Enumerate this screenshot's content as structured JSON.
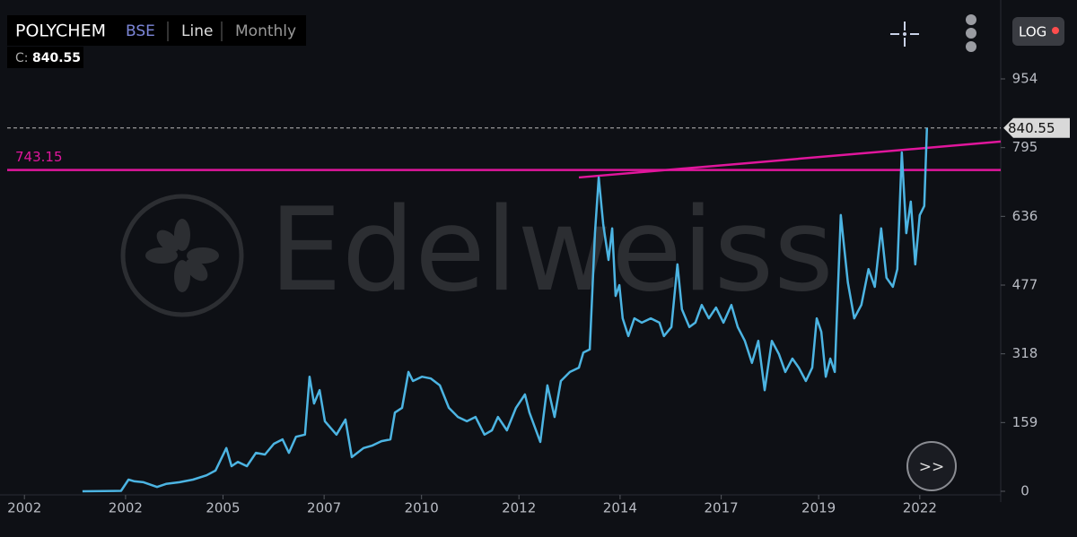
{
  "chart_data": {
    "type": "line",
    "symbol": "POLYCHEM",
    "exchange": "BSE",
    "chart_style": "Line",
    "interval": "Monthly",
    "close_label": "C:",
    "close": 840.55,
    "log_button": "LOG",
    "watermark": "Edelweiss",
    "forward_button": ">>",
    "level": 743.15,
    "level_color": "#e0169c",
    "trendline": {
      "x": [
        2012.9,
        2024.16
      ],
      "values": [
        726,
        809
      ],
      "color": "#e0169c"
    },
    "xlim": [
      1997.64,
      2024.16
    ],
    "xticks": [
      {
        "value": 1998.1,
        "label": "2002"
      },
      {
        "value": 2000.8,
        "label": "2002"
      },
      {
        "value": 2003.4,
        "label": "2005"
      },
      {
        "value": 2006.1,
        "label": "2007"
      },
      {
        "value": 2008.7,
        "label": "2010"
      },
      {
        "value": 2011.3,
        "label": "2012"
      },
      {
        "value": 2014.0,
        "label": "2014"
      },
      {
        "value": 2016.7,
        "label": "2017"
      },
      {
        "value": 2019.3,
        "label": "2019"
      },
      {
        "value": 2022.0,
        "label": "2022"
      }
    ],
    "ylim": [
      0,
      954
    ],
    "yticks": [
      0,
      159,
      318,
      477,
      636,
      795,
      954
    ],
    "series": [
      {
        "name": "POLYCHEM",
        "color": "#4cb4e2",
        "x": [
          1999.65,
          2000.68,
          2000.88,
          2001.04,
          2001.28,
          2001.64,
          2001.88,
          2002.24,
          2002.6,
          2002.96,
          2003.2,
          2003.49,
          2003.63,
          2003.8,
          2004.04,
          2004.28,
          2004.52,
          2004.76,
          2004.99,
          2005.16,
          2005.35,
          2005.59,
          2005.71,
          2005.83,
          2005.98,
          2006.12,
          2006.43,
          2006.67,
          2006.84,
          2007.15,
          2007.39,
          2007.63,
          2007.87,
          2007.99,
          2008.18,
          2008.35,
          2008.47,
          2008.71,
          2008.95,
          2009.19,
          2009.43,
          2009.67,
          2009.91,
          2010.14,
          2010.38,
          2010.58,
          2010.74,
          2010.98,
          2011.22,
          2011.46,
          2011.58,
          2011.87,
          2012.06,
          2012.25,
          2012.42,
          2012.66,
          2012.9,
          2013.02,
          2013.19,
          2013.33,
          2013.43,
          2013.55,
          2013.69,
          2013.79,
          2013.88,
          2013.98,
          2014.07,
          2014.22,
          2014.38,
          2014.58,
          2014.82,
          2015.05,
          2015.17,
          2015.37,
          2015.53,
          2015.65,
          2015.85,
          2016.01,
          2016.18,
          2016.37,
          2016.56,
          2016.76,
          2016.97,
          2017.14,
          2017.33,
          2017.52,
          2017.69,
          2017.86,
          2018.05,
          2018.24,
          2018.41,
          2018.6,
          2018.77,
          2018.96,
          2019.13,
          2019.25,
          2019.37,
          2019.49,
          2019.61,
          2019.73,
          2019.89,
          2020.08,
          2020.25,
          2020.44,
          2020.63,
          2020.8,
          2020.97,
          2021.11,
          2021.28,
          2021.4,
          2021.52,
          2021.64,
          2021.76,
          2021.88,
          2022.0,
          2022.12,
          2022.19
        ],
        "values": [
          0,
          1,
          27,
          23,
          21,
          10,
          17,
          21,
          27,
          37,
          48,
          100,
          58,
          68,
          58,
          89,
          85,
          110,
          120,
          89,
          126,
          131,
          265,
          203,
          234,
          162,
          131,
          166,
          79,
          100,
          106,
          116,
          120,
          182,
          193,
          276,
          255,
          265,
          261,
          245,
          193,
          172,
          162,
          172,
          131,
          141,
          172,
          141,
          193,
          224,
          182,
          114,
          245,
          172,
          255,
          276,
          286,
          321,
          328,
          597,
          726,
          618,
          535,
          608,
          452,
          477,
          400,
          359,
          400,
          390,
          400,
          390,
          359,
          380,
          525,
          421,
          380,
          390,
          431,
          400,
          425,
          390,
          431,
          380,
          348,
          297,
          348,
          234,
          348,
          317,
          276,
          307,
          286,
          255,
          286,
          400,
          369,
          265,
          307,
          276,
          639,
          483,
          400,
          431,
          514,
          473,
          608,
          494,
          473,
          514,
          784,
          597,
          670,
          525,
          639,
          660,
          840.55
        ]
      }
    ]
  }
}
